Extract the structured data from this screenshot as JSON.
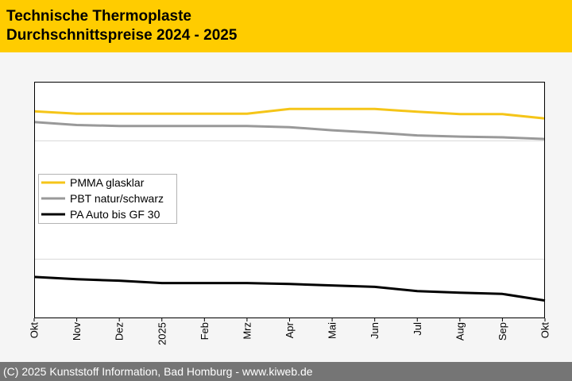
{
  "header": {
    "title_line1": "Technische Thermoplaste",
    "title_line2": "Durchschnittspreise 2024 - 2025"
  },
  "footer": {
    "copyright": "(C) 2025 Kunststoff Information, Bad Homburg - www.kiweb.de"
  },
  "chart_data": {
    "type": "line",
    "title": "Technische Thermoplaste Durchschnittspreise 2024 - 2025",
    "xlabel": "",
    "ylabel": "",
    "categories": [
      "Okt",
      "Nov",
      "Dez",
      "2025",
      "Feb",
      "Mrz",
      "Apr",
      "Mai",
      "Jun",
      "Jul",
      "Aug",
      "Sep",
      "Okt"
    ],
    "ylim": [
      0,
      100
    ],
    "y_gridlines": [
      25,
      75
    ],
    "y_ticks_visible": false,
    "legend_position": "left-middle",
    "series": [
      {
        "name": "PMMA glasklar",
        "color": "#f5c518",
        "values": [
          87.5,
          86.5,
          86.5,
          86.5,
          86.5,
          86.5,
          88.5,
          88.5,
          88.5,
          87.3,
          86.3,
          86.3,
          84.5
        ]
      },
      {
        "name": "PBT natur/schwarz",
        "color": "#999999",
        "values": [
          83.0,
          81.7,
          81.3,
          81.3,
          81.3,
          81.3,
          80.8,
          79.5,
          78.5,
          77.3,
          76.8,
          76.5,
          75.8
        ]
      },
      {
        "name": "PA Auto bis GF 30",
        "color": "#000000",
        "values": [
          17.5,
          16.5,
          15.9,
          14.9,
          14.9,
          14.9,
          14.5,
          13.9,
          13.3,
          11.5,
          10.8,
          10.3,
          7.5
        ]
      }
    ]
  }
}
